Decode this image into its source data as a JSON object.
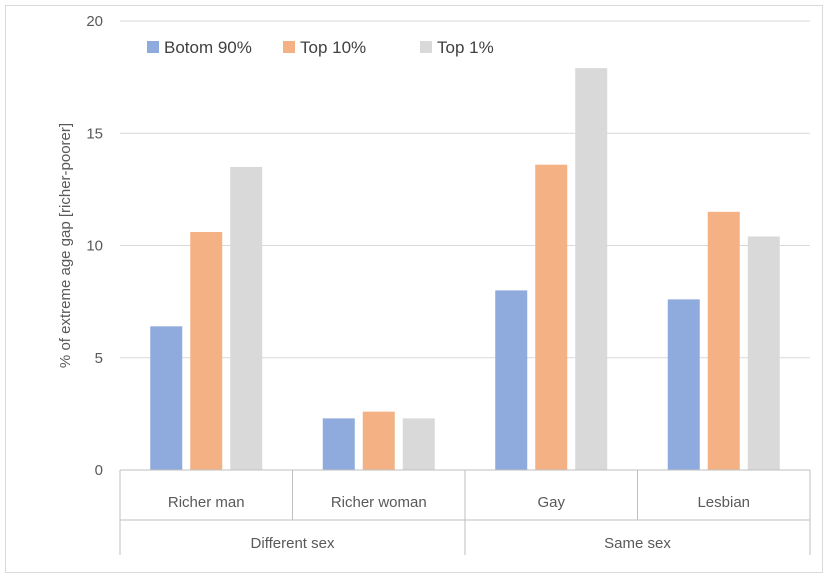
{
  "chart_data": {
    "type": "bar",
    "title": "",
    "xlabel": "",
    "ylabel": "% of extreme age gap [richer-poorer]",
    "ylim": [
      0,
      20
    ],
    "yticks": [
      0,
      5,
      10,
      15,
      20
    ],
    "grid": true,
    "legend_position": "top-left",
    "categories": [
      "Richer man",
      "Richer woman",
      "Gay",
      "Lesbian"
    ],
    "groups": [
      {
        "label": "Different sex",
        "categories": [
          "Richer man",
          "Richer woman"
        ]
      },
      {
        "label": "Same sex",
        "categories": [
          "Gay",
          "Lesbian"
        ]
      }
    ],
    "series": [
      {
        "name": "Botom 90%",
        "color": "#8faadc",
        "values": [
          6.4,
          2.3,
          8.0,
          7.6
        ]
      },
      {
        "name": "Top 10%",
        "color": "#f4b183",
        "values": [
          10.6,
          2.6,
          13.6,
          11.5
        ]
      },
      {
        "name": "Top 1%",
        "color": "#d9d9d9",
        "values": [
          13.5,
          2.3,
          17.9,
          10.4
        ]
      }
    ]
  }
}
